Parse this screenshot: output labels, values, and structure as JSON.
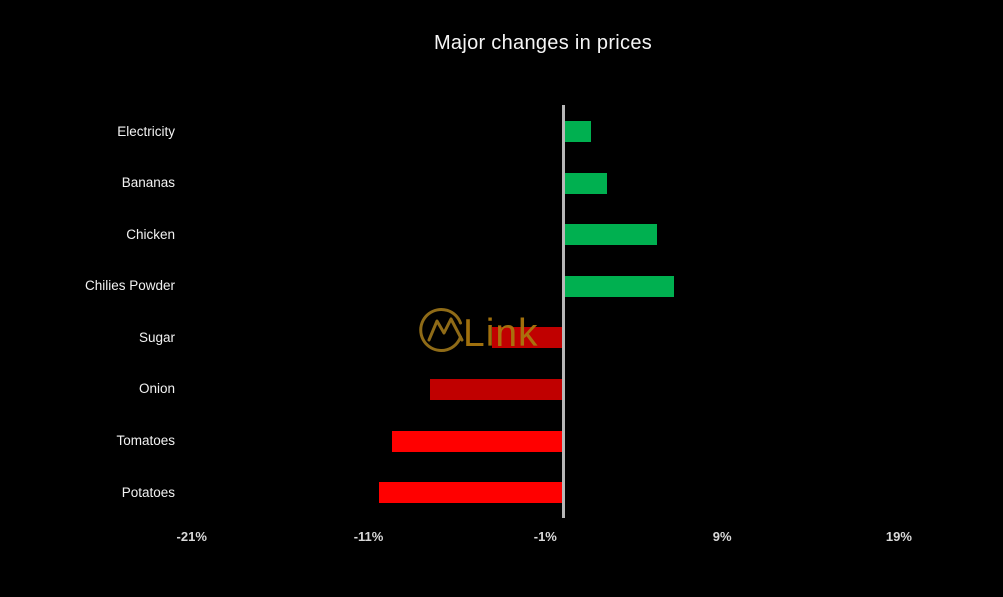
{
  "title": "Major changes in prices",
  "watermark": {
    "text": "Link",
    "logo": "mountain-circle-logo",
    "color": "#a9770e"
  },
  "chart_data": {
    "type": "bar",
    "orientation": "horizontal",
    "title": "Major changes in prices",
    "categories": [
      "Electricity",
      "Bananas",
      "Chicken",
      "Chilies Powder",
      "Sugar",
      "Onion",
      "Tomatoes",
      "Potatoes"
    ],
    "values": [
      1.6,
      2.5,
      5.3,
      6.3,
      -4.0,
      -7.5,
      -9.7,
      -10.4
    ],
    "unit": "%",
    "bar_colors": [
      "#00B050",
      "#00B050",
      "#00B050",
      "#00B050",
      "#C00000",
      "#C00000",
      "#FF0000",
      "#FF0000"
    ],
    "x_tick_values": [
      -21,
      -11,
      -1,
      9,
      19
    ],
    "x_tick_labels": [
      "-21%",
      "-11%",
      "-1%",
      "9%",
      "19%"
    ],
    "xlim": [
      -22,
      20.5
    ],
    "background": "#000000",
    "axis_color": "#b7b7b7",
    "positive_color": "#00B050",
    "negative_dark_color": "#C00000",
    "negative_bright_color": "#FF0000",
    "grid": false,
    "legend": false
  }
}
